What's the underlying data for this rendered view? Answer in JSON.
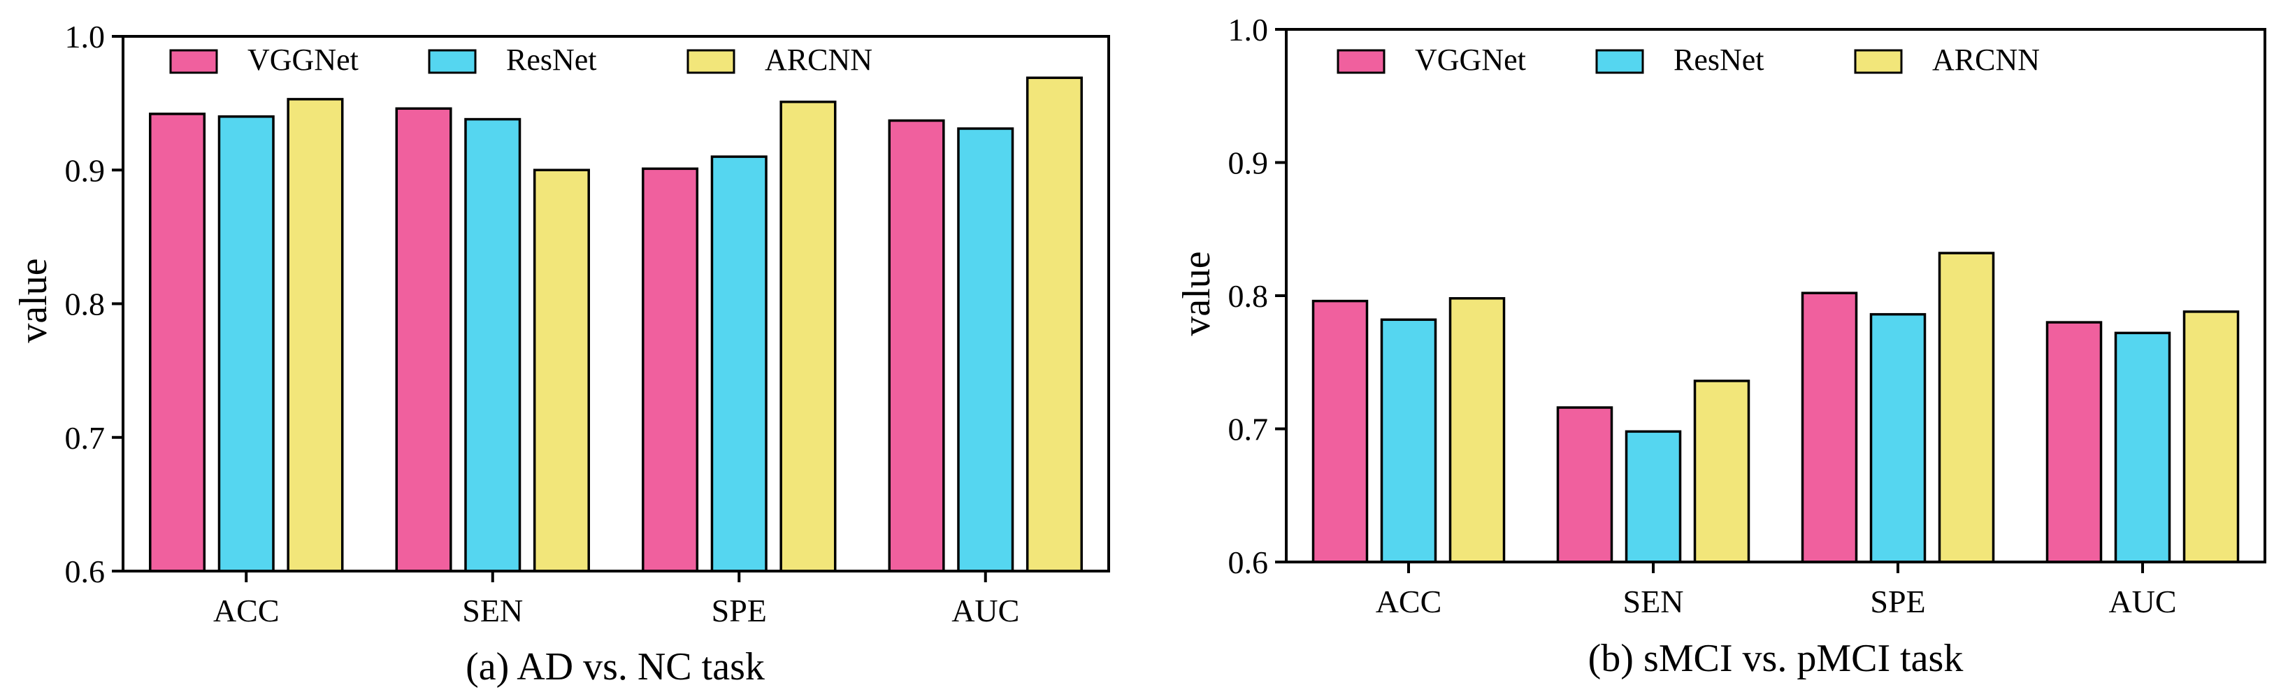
{
  "chart_data": [
    {
      "type": "bar",
      "title": "(a) AD vs. NC task",
      "xlabel": "",
      "ylabel": "value",
      "ylim": [
        0.6,
        1.0
      ],
      "yticks": [
        "0.6",
        "0.7",
        "0.8",
        "0.9",
        "1.0"
      ],
      "legend_position": "top-left",
      "categories": [
        "ACC",
        "SEN",
        "SPE",
        "AUC"
      ],
      "series": [
        {
          "name": "VGGNet",
          "color": "#f0609e",
          "values": [
            0.942,
            0.946,
            0.901,
            0.937
          ]
        },
        {
          "name": "ResNet",
          "color": "#55d6f0",
          "values": [
            0.94,
            0.938,
            0.91,
            0.931
          ]
        },
        {
          "name": "ARCNN",
          "color": "#f2e67a",
          "values": [
            0.953,
            0.9,
            0.951,
            0.969
          ]
        }
      ]
    },
    {
      "type": "bar",
      "title": "(b) sMCI vs. pMCI task",
      "xlabel": "",
      "ylabel": "value",
      "ylim": [
        0.6,
        1.0
      ],
      "yticks": [
        "0.6",
        "0.7",
        "0.8",
        "0.9",
        "1.0"
      ],
      "legend_position": "top-left",
      "categories": [
        "ACC",
        "SEN",
        "SPE",
        "AUC"
      ],
      "series": [
        {
          "name": "VGGNet",
          "color": "#f0609e",
          "values": [
            0.796,
            0.716,
            0.802,
            0.78
          ]
        },
        {
          "name": "ResNet",
          "color": "#55d6f0",
          "values": [
            0.782,
            0.698,
            0.786,
            0.772
          ]
        },
        {
          "name": "ARCNN",
          "color": "#f2e67a",
          "values": [
            0.798,
            0.736,
            0.832,
            0.788
          ]
        }
      ]
    }
  ]
}
